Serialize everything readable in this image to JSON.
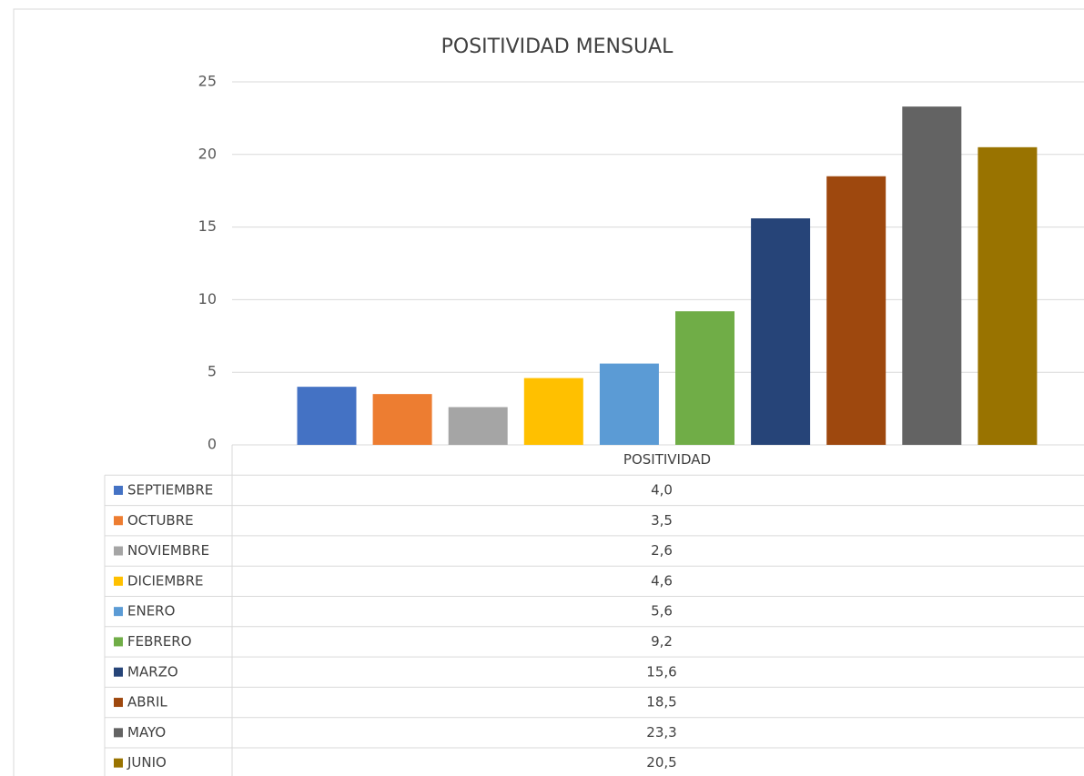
{
  "chart_data": {
    "type": "bar",
    "title": "POSITIVIDAD MENSUAL",
    "categories": [
      "POSITIVIDAD"
    ],
    "series": [
      {
        "name": "SEPTIEMBRE",
        "color": "#4472c4",
        "values": [
          4.0
        ],
        "value_labels": [
          "4,0"
        ]
      },
      {
        "name": "OCTUBRE",
        "color": "#ed7d31",
        "values": [
          3.5
        ],
        "value_labels": [
          "3,5"
        ]
      },
      {
        "name": "NOVIEMBRE",
        "color": "#a5a5a5",
        "values": [
          2.6
        ],
        "value_labels": [
          "2,6"
        ]
      },
      {
        "name": "DICIEMBRE",
        "color": "#ffc000",
        "values": [
          4.6
        ],
        "value_labels": [
          "4,6"
        ]
      },
      {
        "name": "ENERO",
        "color": "#5b9bd5",
        "values": [
          5.6
        ],
        "value_labels": [
          "5,6"
        ]
      },
      {
        "name": "FEBRERO",
        "color": "#70ad47",
        "values": [
          9.2
        ],
        "value_labels": [
          "9,2"
        ]
      },
      {
        "name": "MARZO",
        "color": "#264478",
        "values": [
          15.6
        ],
        "value_labels": [
          "15,6"
        ]
      },
      {
        "name": "ABRIL",
        "color": "#9e480e",
        "values": [
          18.5
        ],
        "value_labels": [
          "18,5"
        ]
      },
      {
        "name": "MAYO",
        "color": "#636363",
        "values": [
          23.3
        ],
        "value_labels": [
          "23,3"
        ]
      },
      {
        "name": "JUNIO",
        "color": "#997300",
        "values": [
          20.5
        ],
        "value_labels": [
          "20,5"
        ]
      }
    ],
    "ylim": [
      0,
      25
    ],
    "yticks": [
      0,
      5,
      10,
      15,
      20,
      25
    ],
    "grid": true
  }
}
